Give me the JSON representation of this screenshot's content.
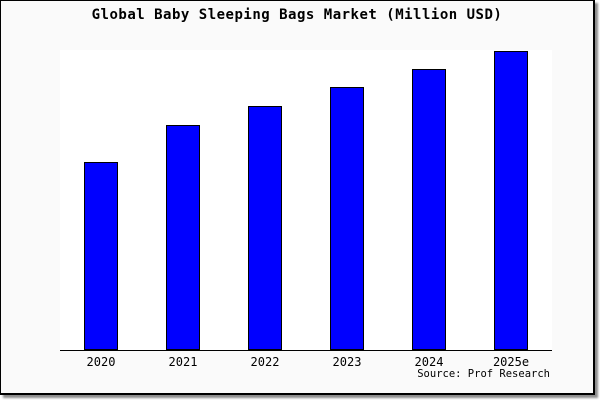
{
  "chart_data": {
    "type": "bar",
    "title": "Global Baby Sleeping Bags Market (Million USD)",
    "categories": [
      "2020",
      "2021",
      "2022",
      "2023",
      "2024",
      "2025e"
    ],
    "values": [
      188,
      225,
      244,
      263,
      281,
      299
    ],
    "xlabel": "",
    "ylabel": "",
    "ylim": [
      0,
      300
    ],
    "grid": false,
    "legend": "none",
    "y_axis_labels_visible": false,
    "bar_color": "#0000ff",
    "bar_edge_color": "#000000",
    "plot_background": "#ffffff",
    "figure_background": "#fafafa",
    "frame_border_color": "#000000",
    "source_note": "Source: Prof Research"
  }
}
